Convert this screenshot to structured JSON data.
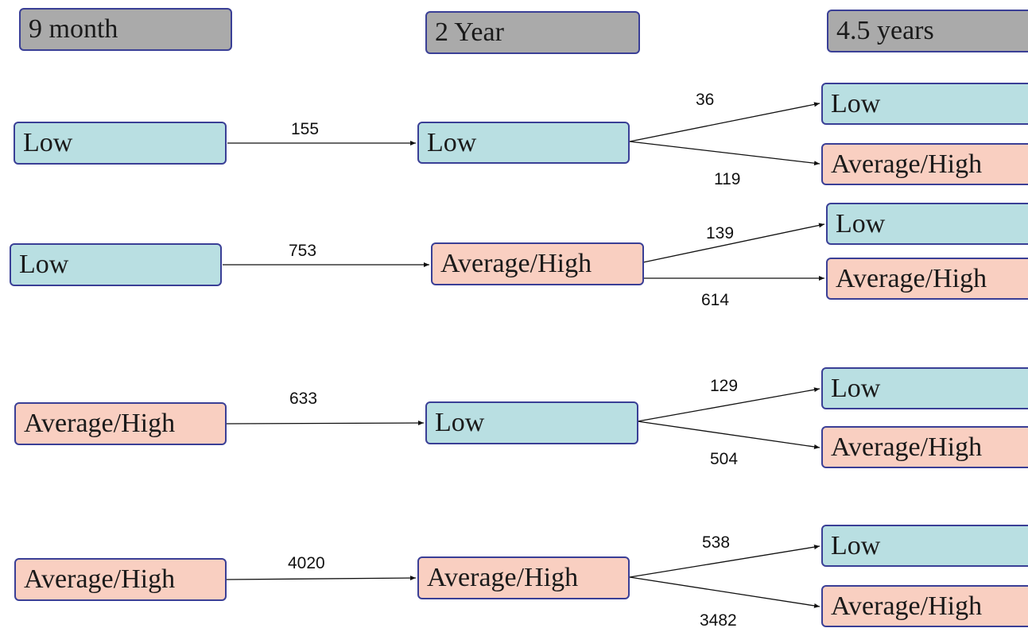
{
  "headers": {
    "col1": "9 month",
    "col2": "2 Year",
    "col3": "4.5 years"
  },
  "nodes": {
    "r1_9m": "Low",
    "r1_2y": "Low",
    "r1_45_low": "Low",
    "r1_45_avg": "Average/High",
    "r2_9m": "Low",
    "r2_2y": "Average/High",
    "r2_45_low": "Low",
    "r2_45_avg": "Average/High",
    "r3_9m": "Average/High",
    "r3_2y": "Low",
    "r3_45_low": "Low",
    "r3_45_avg": "Average/High",
    "r4_9m": "Average/High",
    "r4_2y": "Average/High",
    "r4_45_low": "Low",
    "r4_45_avg": "Average/High"
  },
  "edges": {
    "r1_9m_2y": "155",
    "r1_2y_low": "36",
    "r1_2y_avg": "119",
    "r2_9m_2y": "753",
    "r2_2y_low": "139",
    "r2_2y_avg": "614",
    "r3_9m_2y": "633",
    "r3_2y_low": "129",
    "r3_2y_avg": "504",
    "r4_9m_2y": "4020",
    "r4_2y_low": "538",
    "r4_2y_avg": "3482"
  }
}
